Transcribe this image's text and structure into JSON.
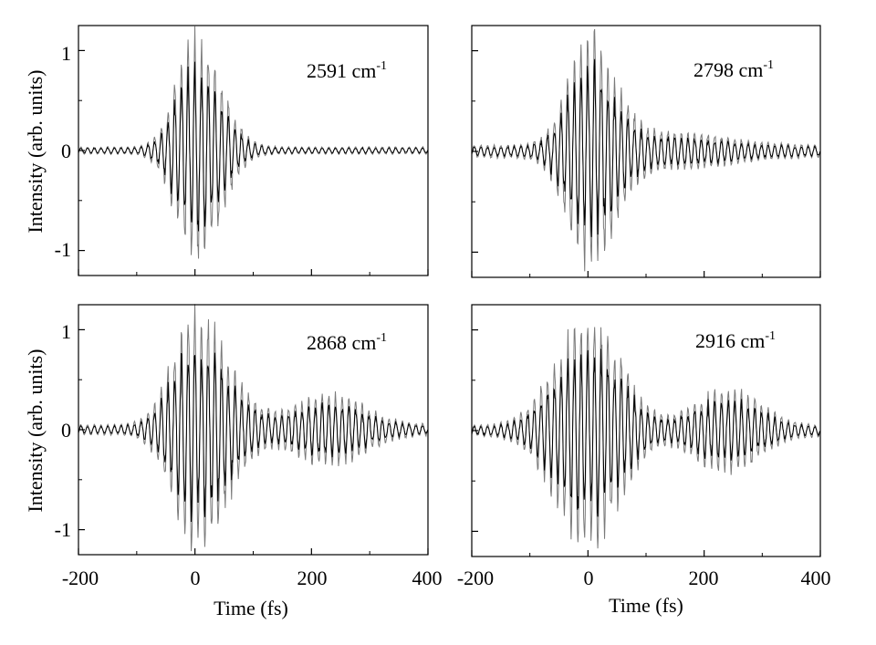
{
  "figure": {
    "shared_ylabel": "Intensity  (arb.  units)",
    "shared_xlabel": "Time  (fs)"
  },
  "chart_data": [
    {
      "type": "line",
      "panel": "top-left",
      "annotation_number": "2591",
      "annotation_unit": "cm",
      "annotation_exp": "-1",
      "xlim": [
        -200,
        400
      ],
      "ylim": [
        -1.25,
        1.25
      ],
      "xticks": [
        -200,
        0,
        200,
        400
      ],
      "yticks": [
        -1,
        0,
        1
      ],
      "show_xticklabels": false,
      "show_yticklabels": true,
      "xlabel": "",
      "ylabel": "Intensity  (arb.  units)",
      "envelope": {
        "peak_time": 0,
        "peak_amplitude": 1.05,
        "rise_width": 32,
        "decay_width": 42,
        "secondary_time": 250,
        "secondary_amplitude": 0.0,
        "secondary_width": 40,
        "baseline_noise": 0.035
      }
    },
    {
      "type": "line",
      "panel": "top-right",
      "annotation_number": "2798",
      "annotation_unit": "cm",
      "annotation_exp": "-1",
      "xlim": [
        -200,
        400
      ],
      "ylim": [
        -1.25,
        1.25
      ],
      "xticks": [
        -200,
        0,
        200,
        400
      ],
      "yticks": [
        -1,
        0,
        1
      ],
      "show_xticklabels": false,
      "show_yticklabels": false,
      "xlabel": "",
      "ylabel": "",
      "envelope": {
        "peak_time": 0,
        "peak_amplitude": 1.02,
        "rise_width": 35,
        "decay_width": 45,
        "secondary_time": 150,
        "secondary_amplitude": 0.12,
        "secondary_width": 90,
        "baseline_noise": 0.06
      }
    },
    {
      "type": "line",
      "panel": "bottom-left",
      "annotation_number": "2868",
      "annotation_unit": "cm",
      "annotation_exp": "-1",
      "xlim": [
        -200,
        400
      ],
      "ylim": [
        -1.25,
        1.25
      ],
      "xticks": [
        -200,
        0,
        200,
        400
      ],
      "yticks": [
        -1,
        0,
        1
      ],
      "show_xticklabels": true,
      "show_yticklabels": true,
      "xlabel": "Time  (fs)",
      "ylabel": "Intensity  (arb.  units)",
      "envelope": {
        "peak_time": 0,
        "peak_amplitude": 1.08,
        "rise_width": 38,
        "decay_width": 55,
        "secondary_time": 230,
        "secondary_amplitude": 0.3,
        "secondary_width": 60,
        "baseline_noise": 0.05
      }
    },
    {
      "type": "line",
      "panel": "bottom-right",
      "annotation_number": "2916",
      "annotation_unit": "cm",
      "annotation_exp": "-1",
      "xlim": [
        -200,
        400
      ],
      "ylim": [
        -1.25,
        1.25
      ],
      "xticks": [
        -200,
        0,
        200,
        400
      ],
      "yticks": [
        -1,
        0,
        1
      ],
      "show_xticklabels": true,
      "show_yticklabels": false,
      "xlabel": "Time  (fs)",
      "ylabel": "",
      "envelope": {
        "peak_time": 0,
        "peak_amplitude": 1.03,
        "rise_width": 55,
        "decay_width": 55,
        "secondary_time": 240,
        "secondary_amplitude": 0.35,
        "secondary_width": 55,
        "baseline_noise": 0.05
      }
    }
  ]
}
